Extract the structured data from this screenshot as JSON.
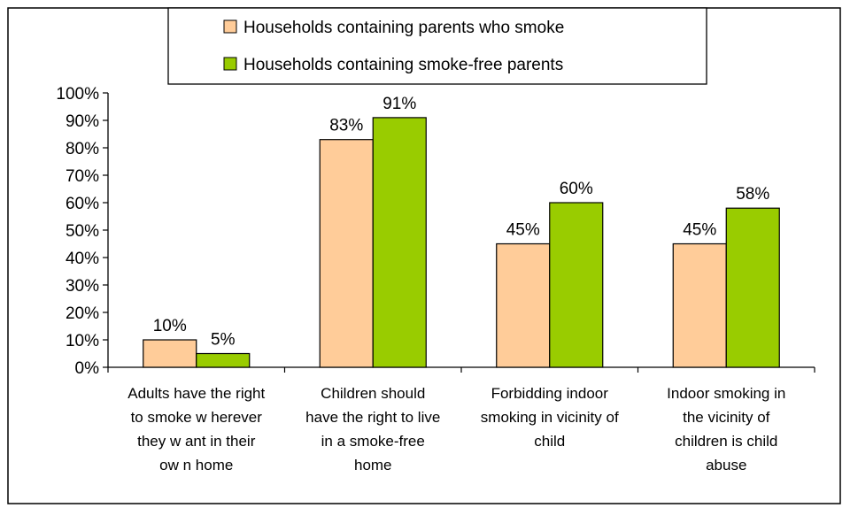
{
  "chart_data": {
    "type": "bar",
    "title": "",
    "xlabel": "",
    "ylabel": "",
    "ylim": [
      0,
      100
    ],
    "y_ticks": [
      "0%",
      "10%",
      "20%",
      "30%",
      "40%",
      "50%",
      "60%",
      "70%",
      "80%",
      "90%",
      "100%"
    ],
    "grid": false,
    "legend_position": "top",
    "categories": [
      [
        "Adults have the right",
        "to smoke w herever",
        "they w ant in their",
        "ow n home"
      ],
      [
        "Children should",
        "have the right to live",
        "in a smoke-free",
        "home"
      ],
      [
        "Forbidding indoor",
        "smoking in vicinity of",
        "child"
      ],
      [
        "Indoor smoking in",
        "the vicinity of",
        "children is child",
        "abuse"
      ]
    ],
    "series": [
      {
        "name": "Households containing parents who smoke",
        "color": "#FFCC99",
        "values": [
          10,
          83,
          45,
          45
        ],
        "labels": [
          "10%",
          "83%",
          "45%",
          "45%"
        ]
      },
      {
        "name": "Households containing smoke-free parents",
        "color": "#99CC00",
        "values": [
          5,
          91,
          60,
          58
        ],
        "labels": [
          "5%",
          "91%",
          "60%",
          "58%"
        ]
      }
    ]
  }
}
